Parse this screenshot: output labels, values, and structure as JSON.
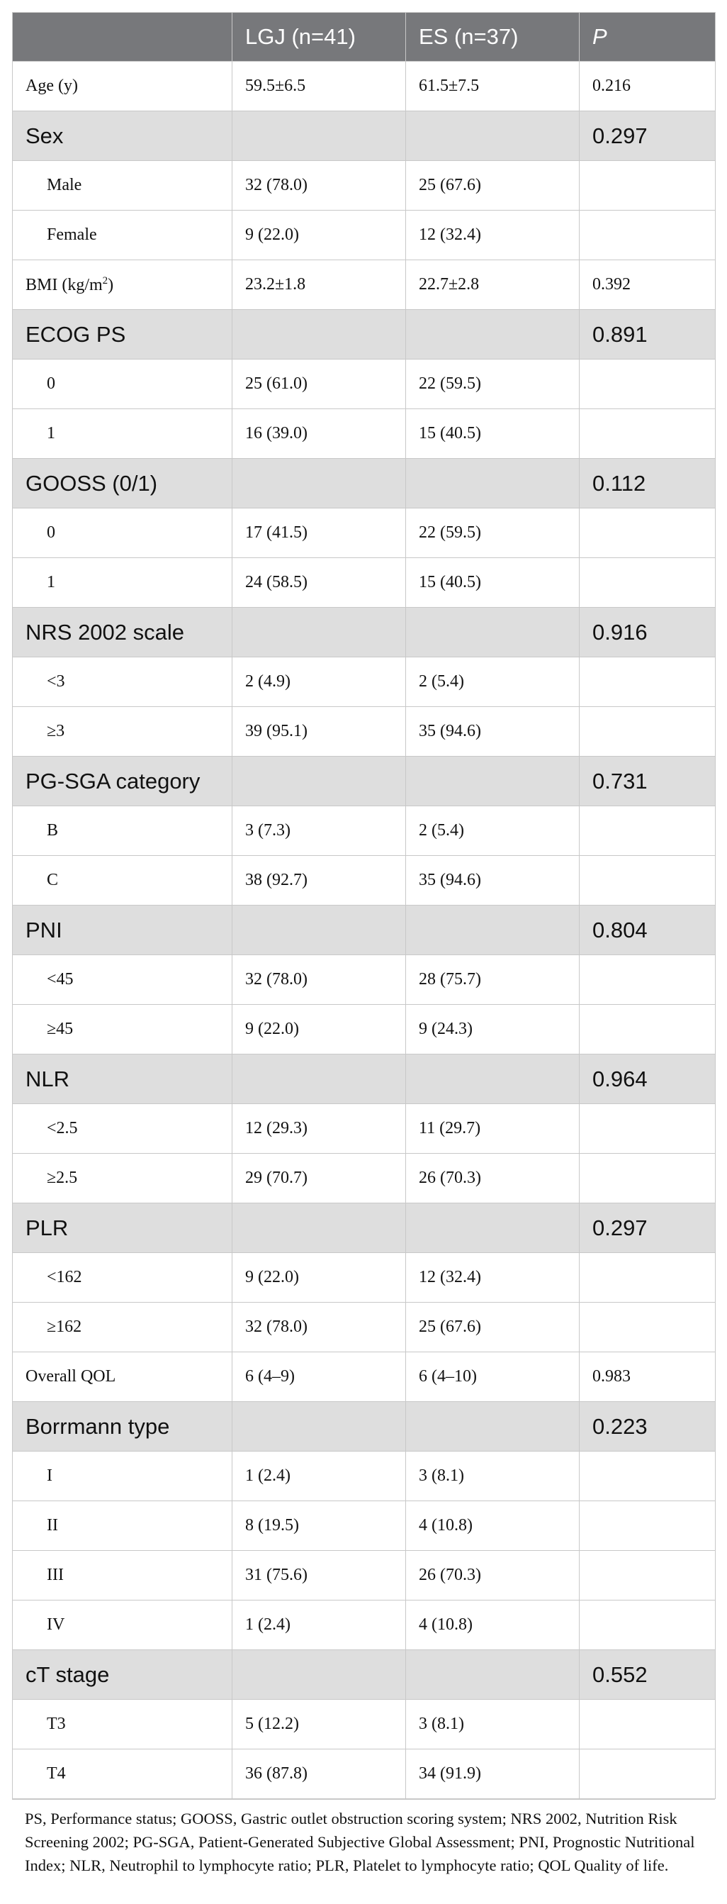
{
  "header": {
    "col1": "",
    "col2": "LGJ (n=41)",
    "col3": "ES (n=37)",
    "col4": "P"
  },
  "rows": [
    {
      "type": "data",
      "label": "Age (y)",
      "lgj": "59.5±6.5",
      "es": "61.5±7.5",
      "p": "0.216"
    },
    {
      "type": "group",
      "label": "Sex",
      "lgj": "",
      "es": "",
      "p": "0.297"
    },
    {
      "type": "sub",
      "label": "Male",
      "lgj": "32 (78.0)",
      "es": "25 (67.6)",
      "p": ""
    },
    {
      "type": "sub",
      "label": "Female",
      "lgj": "9 (22.0)",
      "es": "12 (32.4)",
      "p": ""
    },
    {
      "type": "data",
      "label": "BMI (kg/m",
      "sup": "2",
      "label_after": ")",
      "lgj": "23.2±1.8",
      "es": "22.7±2.8",
      "p": "0.392"
    },
    {
      "type": "group",
      "label": "ECOG PS",
      "lgj": "",
      "es": "",
      "p": "0.891"
    },
    {
      "type": "sub",
      "label": "0",
      "lgj": "25 (61.0)",
      "es": "22 (59.5)",
      "p": ""
    },
    {
      "type": "sub",
      "label": "1",
      "lgj": "16 (39.0)",
      "es": "15 (40.5)",
      "p": ""
    },
    {
      "type": "group",
      "label": "GOOSS (0/1)",
      "lgj": "",
      "es": "",
      "p": "0.112"
    },
    {
      "type": "sub",
      "label": "0",
      "lgj": "17 (41.5)",
      "es": "22 (59.5)",
      "p": ""
    },
    {
      "type": "sub",
      "label": "1",
      "lgj": "24 (58.5)",
      "es": "15 (40.5)",
      "p": ""
    },
    {
      "type": "group",
      "label": "NRS 2002 scale",
      "lgj": "",
      "es": "",
      "p": "0.916"
    },
    {
      "type": "sub",
      "label": "<3",
      "lgj": "2 (4.9)",
      "es": "2 (5.4)",
      "p": ""
    },
    {
      "type": "sub",
      "label": "≥3",
      "lgj": "39 (95.1)",
      "es": "35 (94.6)",
      "p": ""
    },
    {
      "type": "group",
      "label": "PG-SGA category",
      "lgj": "",
      "es": "",
      "p": "0.731"
    },
    {
      "type": "sub",
      "label": "B",
      "lgj": "3 (7.3)",
      "es": "2 (5.4)",
      "p": ""
    },
    {
      "type": "sub",
      "label": "C",
      "lgj": "38 (92.7)",
      "es": "35 (94.6)",
      "p": ""
    },
    {
      "type": "group",
      "label": "PNI",
      "lgj": "",
      "es": "",
      "p": "0.804"
    },
    {
      "type": "sub",
      "label": "<45",
      "lgj": "32 (78.0)",
      "es": "28 (75.7)",
      "p": ""
    },
    {
      "type": "sub",
      "label": "≥45",
      "lgj": "9 (22.0)",
      "es": "9 (24.3)",
      "p": ""
    },
    {
      "type": "group",
      "label": "NLR",
      "lgj": "",
      "es": "",
      "p": "0.964"
    },
    {
      "type": "sub",
      "label": "<2.5",
      "lgj": "12 (29.3)",
      "es": "11 (29.7)",
      "p": ""
    },
    {
      "type": "sub",
      "label": "≥2.5",
      "lgj": "29 (70.7)",
      "es": "26 (70.3)",
      "p": ""
    },
    {
      "type": "group",
      "label": "PLR",
      "lgj": "",
      "es": "",
      "p": "0.297"
    },
    {
      "type": "sub",
      "label": "<162",
      "lgj": "9 (22.0)",
      "es": "12 (32.4)",
      "p": ""
    },
    {
      "type": "sub",
      "label": "≥162",
      "lgj": "32 (78.0)",
      "es": "25 (67.6)",
      "p": ""
    },
    {
      "type": "data",
      "label": "Overall QOL",
      "lgj": "6 (4–9)",
      "es": "6 (4–10)",
      "p": "0.983"
    },
    {
      "type": "group",
      "label": "Borrmann type",
      "lgj": "",
      "es": "",
      "p": "0.223"
    },
    {
      "type": "sub",
      "label": "I",
      "lgj": "1 (2.4)",
      "es": "3 (8.1)",
      "p": ""
    },
    {
      "type": "sub",
      "label": "II",
      "lgj": "8 (19.5)",
      "es": "4 (10.8)",
      "p": ""
    },
    {
      "type": "sub",
      "label": "III",
      "lgj": "31 (75.6)",
      "es": "26 (70.3)",
      "p": ""
    },
    {
      "type": "sub",
      "label": "IV",
      "lgj": "1 (2.4)",
      "es": "4 (10.8)",
      "p": ""
    },
    {
      "type": "group",
      "label": "cT stage",
      "lgj": "",
      "es": "",
      "p": "0.552"
    },
    {
      "type": "sub",
      "label": "T3",
      "lgj": "5 (12.2)",
      "es": "3 (8.1)",
      "p": ""
    },
    {
      "type": "sub",
      "label": "T4",
      "lgj": "36 (87.8)",
      "es": "34 (91.9)",
      "p": ""
    }
  ],
  "footnote": "PS, Performance status; GOOSS, Gastric outlet obstruction scoring system; NRS 2002, Nutrition Risk Screening 2002; PG-SGA, Patient-Generated Subjective Global Assessment; PNI, Prognostic Nutritional Index; NLR, Neutrophil to lymphocyte ratio; PLR, Platelet to lymphocyte ratio; QOL Quality of life."
}
